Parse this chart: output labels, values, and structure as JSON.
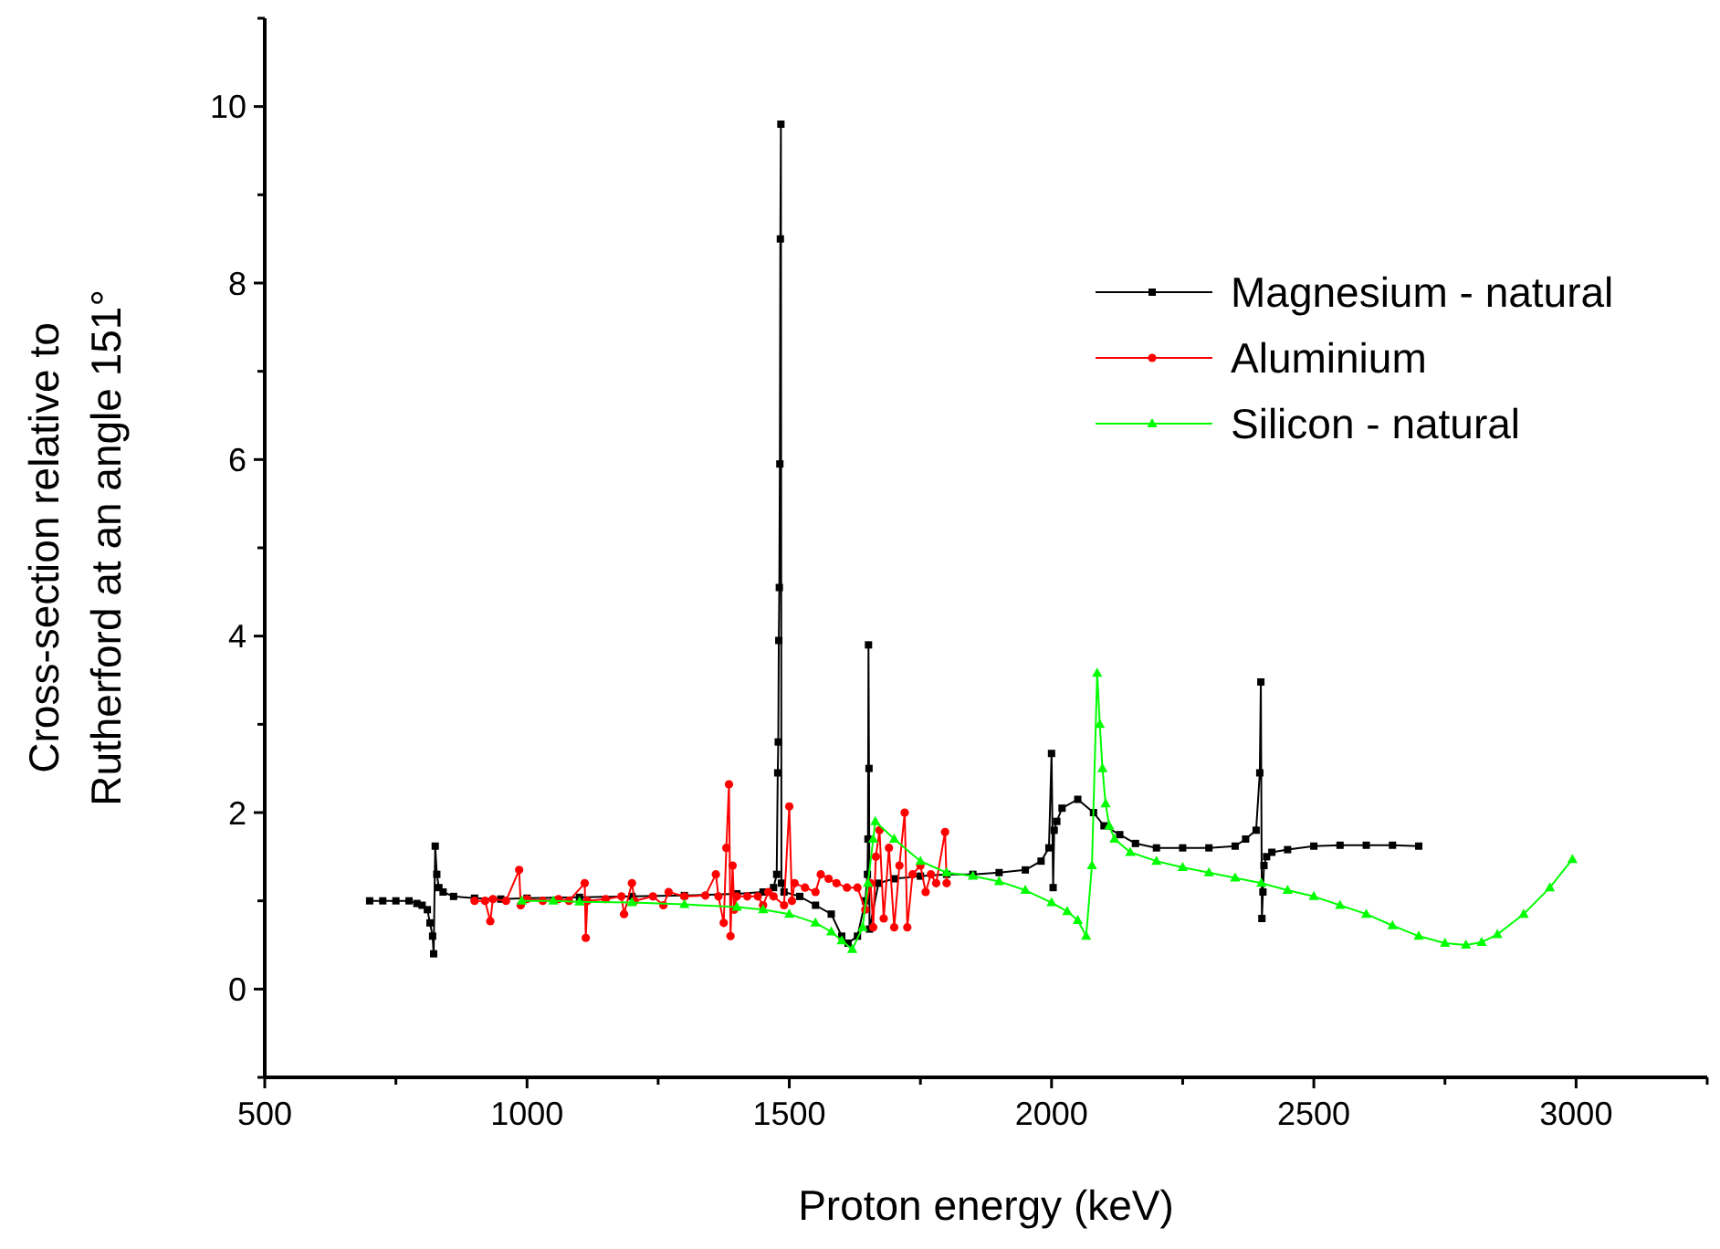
{
  "chart_data": {
    "type": "line",
    "xlabel": "Proton energy (keV)",
    "ylabel": "Cross-section relative to Rutherford at an angle 151°",
    "xlim": [
      500,
      3250
    ],
    "xticks": [
      500,
      {
        "value": 750,
        "label": null
      },
      1000,
      {
        "value": 1250,
        "label": null
      },
      1500,
      {
        "value": 1750,
        "label": null
      },
      2000,
      {
        "value": 2250,
        "label": null
      },
      2500,
      {
        "value": 2750,
        "label": null
      },
      3000,
      {
        "value": 3250,
        "label": null
      }
    ],
    "ylim": [
      -1,
      11
    ],
    "yticks": [
      {
        "value": -1,
        "label": null
      },
      0,
      {
        "value": 1,
        "label": null
      },
      2,
      {
        "value": 3,
        "label": null
      },
      4,
      {
        "value": 5,
        "label": null
      },
      6,
      {
        "value": 7,
        "label": null
      },
      8,
      {
        "value": 9,
        "label": null
      },
      10,
      {
        "value": 11,
        "label": null
      }
    ],
    "grid": false,
    "legend": "top right",
    "line_style": "solid",
    "series": [
      {
        "name": "Magnesium - natural",
        "color": "#000000",
        "marker": "square",
        "x": [
          700,
          725,
          750,
          775,
          790,
          800,
          810,
          815,
          820,
          822,
          825,
          828,
          832,
          840,
          860,
          900,
          950,
          1000,
          1100,
          1200,
          1300,
          1400,
          1450,
          1470,
          1476,
          1478,
          1479,
          1480,
          1481,
          1482,
          1483,
          1484,
          1485,
          1490,
          1520,
          1550,
          1580,
          1600,
          1612,
          1630,
          1645,
          1649,
          1650,
          1651,
          1652,
          1653,
          1670,
          1700,
          1750,
          1800,
          1850,
          1900,
          1950,
          1980,
          1995,
          2000,
          2003,
          2005,
          2010,
          2020,
          2050,
          2080,
          2100,
          2130,
          2160,
          2200,
          2250,
          2300,
          2350,
          2370,
          2390,
          2397,
          2399,
          2401,
          2403,
          2405,
          2410,
          2420,
          2450,
          2500,
          2550,
          2600,
          2650,
          2700
        ],
        "values": [
          1.0,
          1.0,
          1.0,
          1.0,
          0.97,
          0.95,
          0.9,
          0.75,
          0.6,
          0.4,
          1.62,
          1.3,
          1.15,
          1.1,
          1.05,
          1.03,
          1.02,
          1.03,
          1.04,
          1.05,
          1.06,
          1.08,
          1.1,
          1.15,
          1.3,
          2.45,
          2.8,
          3.95,
          4.55,
          5.95,
          8.5,
          9.8,
          1.2,
          1.1,
          1.05,
          0.95,
          0.85,
          0.6,
          0.52,
          0.6,
          1.0,
          1.3,
          1.7,
          3.9,
          2.5,
          0.68,
          1.2,
          1.25,
          1.28,
          1.3,
          1.3,
          1.32,
          1.35,
          1.45,
          1.6,
          2.67,
          1.15,
          1.8,
          1.9,
          2.05,
          2.15,
          2.0,
          1.85,
          1.75,
          1.65,
          1.6,
          1.6,
          1.6,
          1.62,
          1.7,
          1.8,
          2.45,
          3.48,
          0.8,
          1.1,
          1.4,
          1.5,
          1.55,
          1.58,
          1.62,
          1.63,
          1.63,
          1.63,
          1.62
        ]
      },
      {
        "name": "Aluminium",
        "color": "#ff0000",
        "marker": "circle",
        "x": [
          900,
          920,
          930,
          935,
          960,
          985,
          988,
          1000,
          1030,
          1060,
          1080,
          1110,
          1112,
          1115,
          1150,
          1180,
          1185,
          1200,
          1205,
          1240,
          1260,
          1270,
          1300,
          1340,
          1360,
          1365,
          1375,
          1380,
          1385,
          1388,
          1392,
          1395,
          1400,
          1420,
          1440,
          1450,
          1460,
          1470,
          1490,
          1500,
          1505,
          1510,
          1530,
          1550,
          1560,
          1575,
          1590,
          1610,
          1630,
          1645,
          1655,
          1660,
          1665,
          1672,
          1680,
          1690,
          1700,
          1710,
          1720,
          1725,
          1735,
          1750,
          1760,
          1770,
          1780,
          1797,
          1800
        ],
        "values": [
          1.0,
          1.0,
          0.77,
          1.02,
          1.0,
          1.35,
          0.95,
          1.02,
          1.0,
          1.02,
          1.0,
          1.2,
          0.58,
          1.0,
          1.02,
          1.05,
          0.85,
          1.2,
          1.0,
          1.05,
          0.95,
          1.1,
          1.05,
          1.06,
          1.3,
          1.05,
          0.75,
          1.6,
          2.32,
          0.6,
          1.4,
          0.9,
          1.05,
          1.05,
          1.05,
          0.95,
          1.1,
          1.05,
          0.95,
          2.07,
          1.0,
          1.2,
          1.15,
          1.1,
          1.3,
          1.25,
          1.2,
          1.15,
          1.15,
          0.9,
          1.2,
          0.7,
          1.5,
          1.8,
          0.8,
          1.6,
          0.7,
          1.4,
          2.0,
          0.7,
          1.3,
          1.4,
          1.1,
          1.3,
          1.2,
          1.78,
          1.2
        ]
      },
      {
        "name": "Silicon - natural",
        "color": "#00ff00",
        "marker": "triangle",
        "x": [
          990,
          1050,
          1100,
          1200,
          1300,
          1400,
          1450,
          1500,
          1550,
          1580,
          1600,
          1620,
          1640,
          1650,
          1660,
          1664,
          1700,
          1750,
          1800,
          1850,
          1900,
          1950,
          2000,
          2030,
          2050,
          2066,
          2077,
          2087,
          2092,
          2097,
          2103,
          2110,
          2120,
          2150,
          2200,
          2250,
          2300,
          2350,
          2400,
          2450,
          2500,
          2550,
          2600,
          2650,
          2700,
          2750,
          2790,
          2820,
          2850,
          2900,
          2950,
          2993
        ],
        "values": [
          1.0,
          1.0,
          0.99,
          0.98,
          0.96,
          0.93,
          0.9,
          0.85,
          0.75,
          0.65,
          0.55,
          0.45,
          0.7,
          1.2,
          1.7,
          1.9,
          1.7,
          1.45,
          1.32,
          1.28,
          1.22,
          1.12,
          0.98,
          0.88,
          0.78,
          0.6,
          1.4,
          3.58,
          3.0,
          2.5,
          2.1,
          1.85,
          1.7,
          1.55,
          1.45,
          1.38,
          1.32,
          1.26,
          1.2,
          1.12,
          1.05,
          0.95,
          0.85,
          0.72,
          0.6,
          0.52,
          0.5,
          0.53,
          0.62,
          0.85,
          1.15,
          1.47
        ]
      }
    ]
  }
}
